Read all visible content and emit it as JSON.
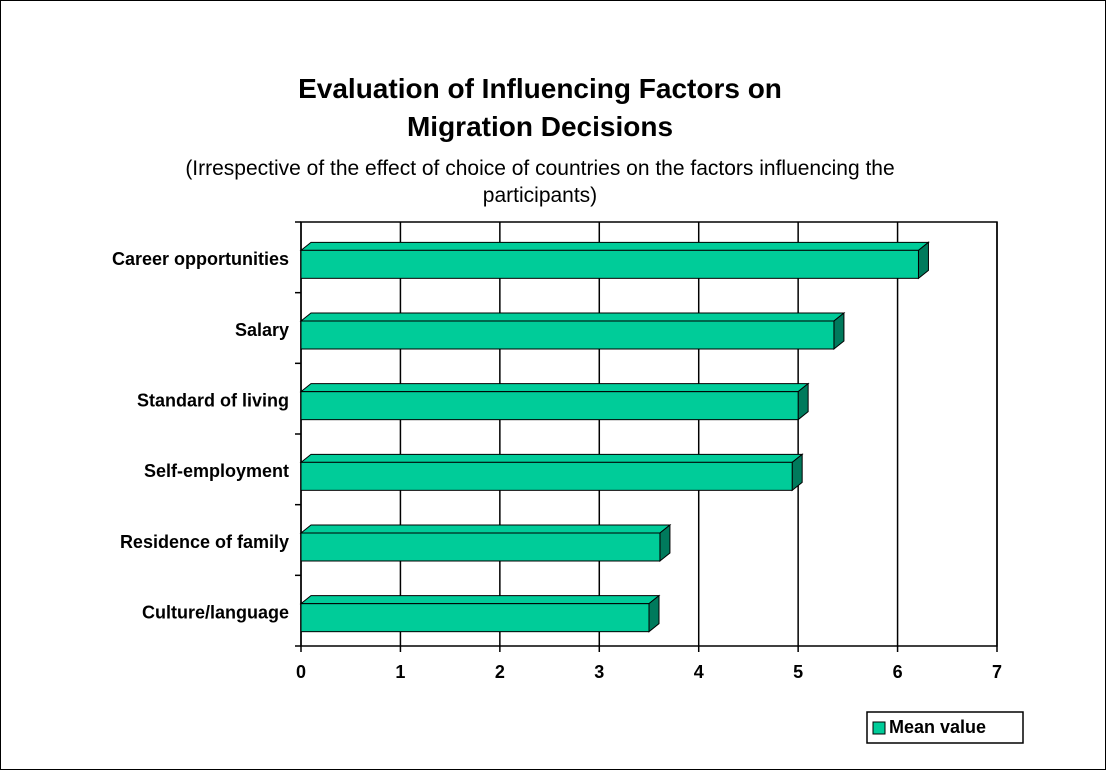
{
  "chart_data": {
    "type": "hbar",
    "title": "Evaluation of Influencing Factors on Migration Decisions",
    "subtitle": "(Irrespective of the effect of choice of countries on the factors influencing the participants)",
    "categories": [
      "Career opportunities",
      "Salary",
      "Standard of living",
      "Self-employment",
      "Residence of family",
      "Culture/language"
    ],
    "series": [
      {
        "name": "Mean value",
        "color": "#00cc99",
        "values": [
          6.21,
          5.36,
          5.0,
          4.94,
          3.61,
          3.5
        ]
      }
    ],
    "xlim": [
      0,
      7
    ],
    "xticks": [
      0,
      1,
      2,
      3,
      4,
      5,
      6,
      7
    ],
    "grid": true,
    "legend": "bottom-right"
  }
}
